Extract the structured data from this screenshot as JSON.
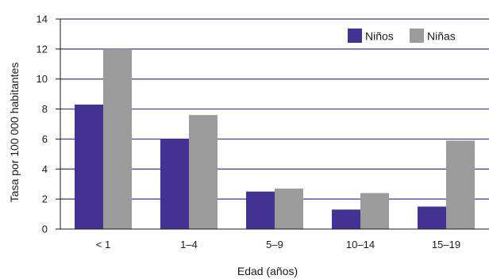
{
  "chart_data": {
    "type": "bar",
    "categories": [
      "< 1",
      "1–4",
      "5–9",
      "10–14",
      "15–19"
    ],
    "series": [
      {
        "name": "Niños",
        "values": [
          8.3,
          6.0,
          2.5,
          1.3,
          1.5
        ],
        "color": "#433292"
      },
      {
        "name": "Niñas",
        "values": [
          12.0,
          7.6,
          2.7,
          2.4,
          5.9
        ],
        "color": "#9b9b9b"
      }
    ],
    "xlabel": "Edad (años)",
    "ylabel": "Tasa por 100 000 habitantes",
    "ylim": [
      0,
      14
    ],
    "yticks": [
      0,
      2,
      4,
      6,
      8,
      10,
      12,
      14
    ],
    "grid": true,
    "legend": "top-right",
    "gridline_color": "#433292"
  }
}
